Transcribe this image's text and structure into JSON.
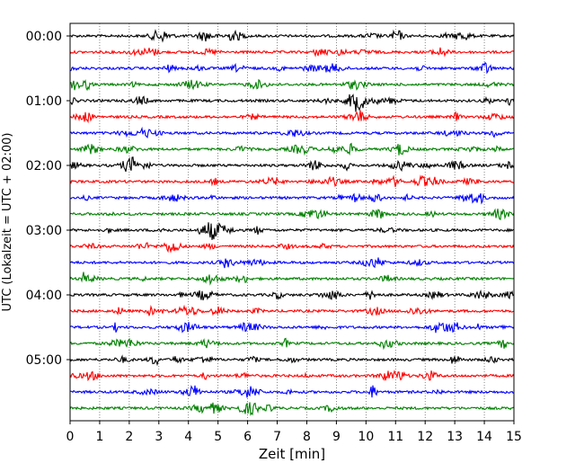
{
  "chart_data": {
    "type": "line",
    "title": "",
    "xlabel": "Zeit  [min]",
    "ylabel": "UTC (Lokalzeit = UTC + 02:00)",
    "xlim": [
      0,
      15
    ],
    "x_ticks": [
      "0",
      "1",
      "2",
      "3",
      "4",
      "5",
      "6",
      "7",
      "8",
      "9",
      "10",
      "11",
      "12",
      "13",
      "14",
      "15"
    ],
    "y_tick_labels": [
      "00:00",
      "01:00",
      "02:00",
      "03:00",
      "04:00",
      "05:00"
    ],
    "row_interval_min": 15,
    "row_count": 24,
    "color_cycle": [
      "#000000",
      "#ff0000",
      "#0000ff",
      "#008000"
    ],
    "grid": {
      "vertical": true,
      "style": "dotted"
    }
  }
}
